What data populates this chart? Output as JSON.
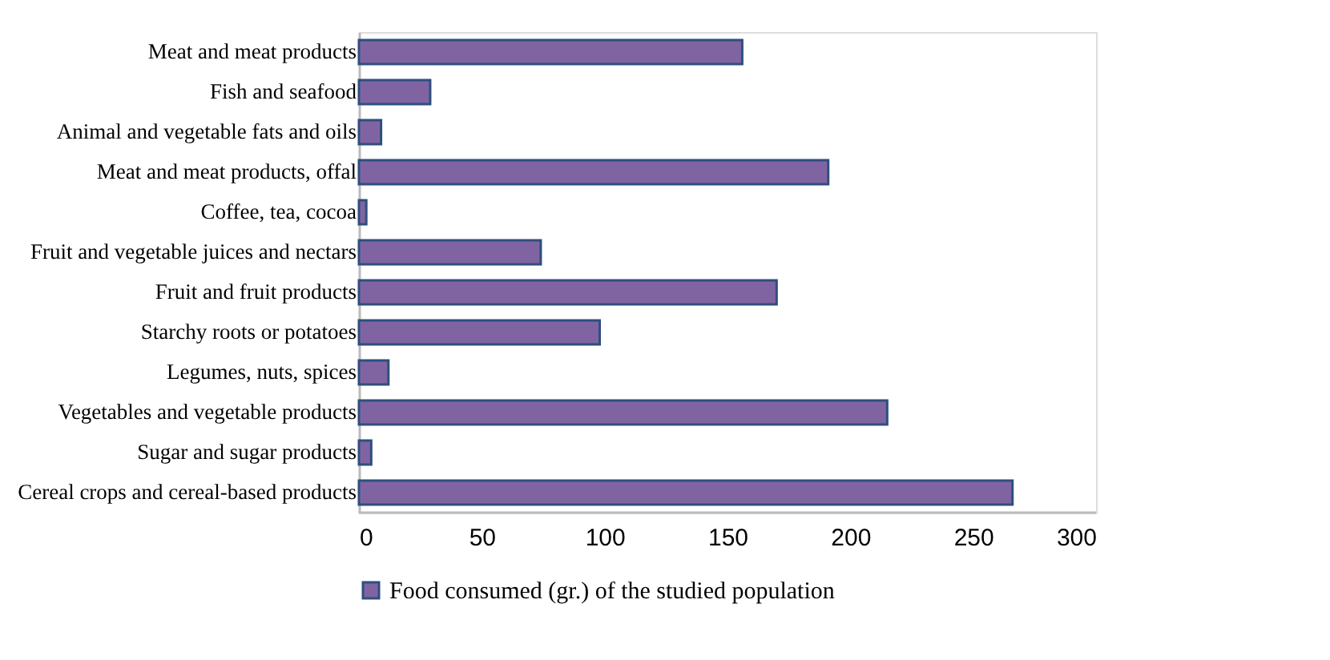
{
  "chart_data": {
    "type": "bar",
    "orientation": "horizontal",
    "categories": [
      "Meat and meat products",
      "Fish and seafood",
      "Animal and vegetable fats and oils",
      "Meat and meat products, offal",
      "Coffee, tea, cocoa",
      "Fruit and vegetable juices and nectars",
      "Fruit and fruit products",
      "Starchy roots or potatoes",
      "Legumes, nuts, spices",
      "Vegetables and vegetable products",
      "Sugar and sugar products",
      "Cereal crops and cereal-based products"
    ],
    "series": [
      {
        "name": "Food consumed (gr.) of the studied population",
        "color": "#8064a2",
        "values": [
          156,
          29,
          9,
          191,
          3,
          74,
          170,
          98,
          12,
          215,
          5,
          266
        ]
      }
    ],
    "xlim": [
      0,
      300
    ],
    "xticks": [
      0,
      50,
      100,
      150,
      200,
      250,
      300
    ],
    "grid": false,
    "legend": "bottom"
  }
}
